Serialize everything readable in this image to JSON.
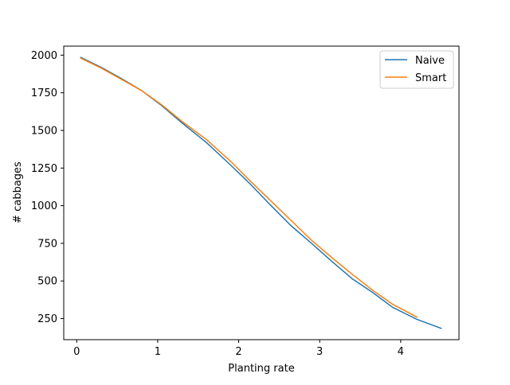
{
  "chart_data": {
    "type": "line",
    "title": "",
    "xlabel": "Planting rate",
    "ylabel": "# cabbages",
    "xlim": [
      -0.16,
      4.72
    ],
    "ylim": [
      110,
      2060
    ],
    "xticks": [
      0,
      1,
      2,
      3,
      4
    ],
    "yticks": [
      250,
      500,
      750,
      1000,
      1250,
      1500,
      1750,
      2000
    ],
    "grid": false,
    "legend_position": "top-right",
    "series": [
      {
        "name": "Naive",
        "color": "#1f77b4",
        "x": [
          0.05,
          0.3,
          0.55,
          0.8,
          1.05,
          1.3,
          1.6,
          1.9,
          2.15,
          2.4,
          2.65,
          2.9,
          3.15,
          3.4,
          3.65,
          3.9,
          4.2,
          4.5
        ],
        "y": [
          1985,
          1920,
          1845,
          1765,
          1665,
          1550,
          1420,
          1270,
          1140,
          1000,
          865,
          750,
          630,
          515,
          425,
          325,
          245,
          185
        ]
      },
      {
        "name": "Smart",
        "color": "#ff7f0e",
        "x": [
          0.05,
          0.3,
          0.55,
          0.8,
          1.05,
          1.3,
          1.6,
          1.9,
          2.15,
          2.4,
          2.65,
          2.9,
          3.15,
          3.4,
          3.65,
          3.9,
          4.2
        ],
        "y": [
          1980,
          1915,
          1840,
          1765,
          1670,
          1560,
          1440,
          1295,
          1160,
          1030,
          900,
          770,
          655,
          545,
          440,
          345,
          260
        ]
      }
    ]
  }
}
